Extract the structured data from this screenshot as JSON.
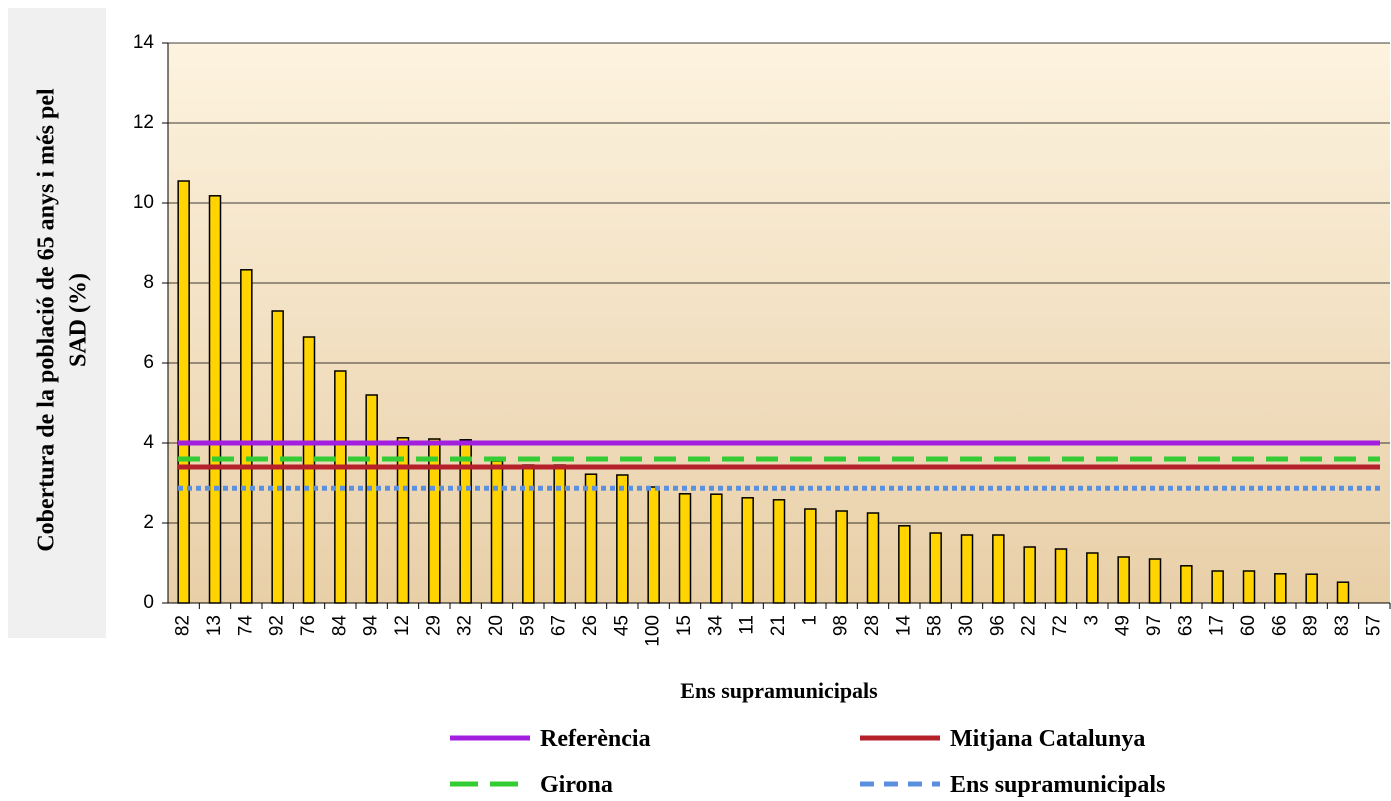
{
  "chart_data": {
    "type": "bar",
    "ylabel": [
      "Cobertura de la població de 65 anys i més pel",
      "SAD (%)"
    ],
    "xlabel": "Ens supramunicipals",
    "categories": [
      "82",
      "13",
      "74",
      "92",
      "76",
      "84",
      "94",
      "12",
      "29",
      "32",
      "20",
      "59",
      "67",
      "26",
      "45",
      "100",
      "15",
      "34",
      "11",
      "21",
      "1",
      "98",
      "28",
      "14",
      "58",
      "30",
      "96",
      "22",
      "72",
      "3",
      "49",
      "97",
      "63",
      "17",
      "60",
      "66",
      "89",
      "83",
      "57"
    ],
    "values": [
      10.55,
      10.18,
      8.33,
      7.3,
      6.65,
      5.8,
      5.2,
      4.13,
      4.1,
      4.08,
      3.55,
      3.45,
      3.45,
      3.22,
      3.2,
      2.9,
      2.73,
      2.72,
      2.63,
      2.58,
      2.35,
      2.3,
      2.25,
      1.93,
      1.75,
      1.7,
      1.7,
      1.4,
      1.35,
      1.25,
      1.15,
      1.1,
      0.93,
      0.8,
      0.8,
      0.73,
      0.72,
      0.52,
      0
    ],
    "color": "#ffd400",
    "reference_lines": [
      {
        "name": "Referència",
        "color": "#a31fe0",
        "value": 4.0,
        "style": "solid"
      },
      {
        "name": "Mitjana Catalunya",
        "color": "#b5202a",
        "value": 3.4,
        "style": "solid"
      },
      {
        "name": "Girona",
        "color": "#33cc33",
        "value": 3.6,
        "style": "dashed"
      },
      {
        "name": "Ens supramunicipals",
        "color": "#5b8fe0",
        "value": 2.87,
        "style": "dotted"
      }
    ],
    "ylim": [
      0,
      14
    ],
    "yticks": [
      0,
      2,
      4,
      6,
      8,
      10,
      12,
      14
    ],
    "grid": true
  }
}
